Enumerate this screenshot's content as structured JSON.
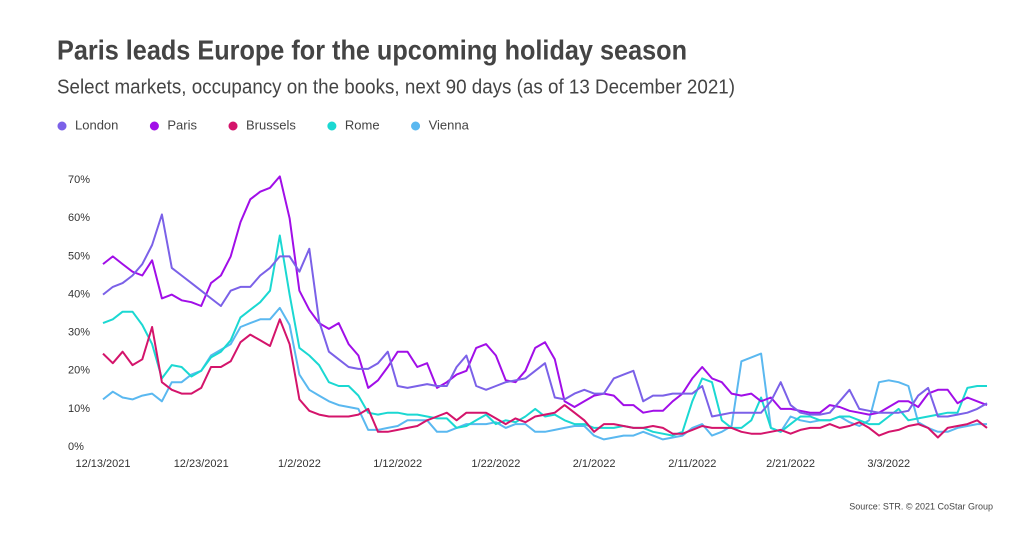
{
  "chart_data": {
    "type": "line",
    "title": "Paris leads Europe for the upcoming holiday season",
    "subtitle": "Select markets, occupancy on the books, next 90 days (as of 13 December 2021)",
    "source": "Source: STR. © 2021 CoStar Group",
    "categories": [
      "12/13/2021",
      null,
      null,
      null,
      null,
      null,
      null,
      null,
      null,
      null,
      "12/23/2021",
      null,
      null,
      null,
      null,
      null,
      null,
      null,
      null,
      null,
      "1/2/2022",
      null,
      null,
      null,
      null,
      null,
      null,
      null,
      null,
      null,
      "1/12/2022",
      null,
      null,
      null,
      null,
      null,
      null,
      null,
      null,
      null,
      "1/22/2022",
      null,
      null,
      null,
      null,
      null,
      null,
      null,
      null,
      null,
      "2/1/2022",
      null,
      null,
      null,
      null,
      null,
      null,
      null,
      null,
      null,
      "2/11/2022",
      null,
      null,
      null,
      null,
      null,
      null,
      null,
      null,
      null,
      "2/21/2022",
      null,
      null,
      null,
      null,
      null,
      null,
      null,
      null,
      null,
      "3/3/2022",
      null,
      null,
      null,
      null,
      null,
      null,
      null,
      null,
      null,
      null
    ],
    "ylim": [
      0,
      72
    ],
    "yticks": [
      {
        "value": 0,
        "label": "0%"
      },
      {
        "value": 10,
        "label": "10%"
      },
      {
        "value": 20,
        "label": "20%"
      },
      {
        "value": 30,
        "label": "30%"
      },
      {
        "value": 40,
        "label": "40%"
      },
      {
        "value": 50,
        "label": "50%"
      },
      {
        "value": 60,
        "label": "60%"
      },
      {
        "value": 70,
        "label": "70%"
      }
    ],
    "grid": false,
    "legend": "top-left",
    "series": [
      {
        "name": "London",
        "color": "#7b61e8",
        "values": [
          40,
          42,
          43,
          45,
          48,
          53,
          61,
          47,
          45,
          43,
          41,
          39,
          37,
          41,
          42,
          42,
          45,
          47,
          50,
          50,
          46,
          52,
          33,
          25,
          23,
          21,
          20.5,
          20.5,
          22,
          25,
          16,
          15.5,
          16,
          16.5,
          16,
          16,
          21,
          24,
          16,
          15,
          16,
          17,
          17.5,
          18,
          20,
          22,
          13,
          12.5,
          14,
          15,
          14,
          14,
          18,
          19,
          20,
          12,
          13.5,
          13.5,
          14,
          14,
          14,
          16,
          8,
          8.5,
          9,
          9,
          9,
          9,
          12,
          17,
          11,
          9,
          8.5,
          8.5,
          9,
          12,
          15,
          10,
          9.5,
          9,
          9,
          9,
          9.5,
          13.5,
          15.5,
          8,
          8,
          8.5,
          9,
          10,
          11.5
        ]
      },
      {
        "name": "Paris",
        "color": "#a10ee8",
        "values": [
          48,
          50,
          48,
          46,
          45,
          49,
          39,
          40,
          38.5,
          38,
          37,
          43,
          45,
          50,
          59,
          65,
          67,
          68,
          71,
          60,
          41,
          36,
          32.5,
          31,
          32.5,
          27,
          24,
          15.5,
          17.5,
          21,
          25,
          25,
          21,
          22,
          15.5,
          17,
          19,
          20,
          26,
          27,
          24,
          17.5,
          17,
          20,
          26,
          27.5,
          23,
          12,
          10.5,
          12,
          13.5,
          14,
          13.5,
          11,
          11,
          9,
          9.5,
          9.5,
          12,
          14,
          18,
          21,
          18,
          17,
          14,
          13.5,
          14,
          12,
          13,
          10,
          10,
          9.5,
          9,
          9,
          11,
          10.5,
          9.5,
          9,
          8.5,
          9,
          10.5,
          12,
          12,
          10.5,
          14,
          15,
          15,
          11.5,
          13,
          12,
          11
        ]
      },
      {
        "name": "Brussels",
        "color": "#d4146b",
        "values": [
          24.5,
          22,
          25,
          21.5,
          23,
          31.5,
          17,
          15,
          14,
          14,
          15.5,
          21,
          21,
          22.5,
          27.5,
          29.5,
          28,
          26.5,
          33.5,
          27,
          12.5,
          9.5,
          8.5,
          8,
          8,
          8,
          8.5,
          10,
          4,
          4,
          4.5,
          5,
          5.5,
          7,
          8,
          9,
          7,
          9,
          9,
          9,
          7.5,
          6,
          7.5,
          6.5,
          8,
          8.5,
          9,
          11,
          9,
          7,
          4,
          6,
          6,
          5.5,
          5,
          5,
          5.5,
          5,
          3.5,
          3.5,
          4.5,
          5.5,
          5,
          5,
          5,
          4,
          3.5,
          3.5,
          4,
          4.5,
          3.5,
          4.5,
          5,
          5,
          6,
          5,
          5.5,
          6.5,
          5,
          3,
          4,
          4.5,
          5.5,
          6,
          5,
          2.5,
          5,
          5.5,
          6,
          7,
          5
        ]
      },
      {
        "name": "Rome",
        "color": "#1bd8d2",
        "values": [
          32.5,
          33.5,
          35.5,
          35.5,
          32,
          27,
          18,
          21.5,
          21,
          18.5,
          20,
          23.5,
          25,
          28,
          34,
          36,
          38,
          41,
          55.5,
          40,
          26,
          24,
          21.5,
          17,
          16,
          16,
          13.5,
          9,
          8.5,
          9,
          9,
          8.5,
          8.5,
          8,
          7.5,
          7.5,
          5,
          5.5,
          7,
          8.5,
          6,
          7,
          6.5,
          8,
          10,
          8,
          8.5,
          7,
          6,
          6,
          5,
          5,
          5,
          5.5,
          5,
          5,
          4,
          3.5,
          3,
          4,
          12,
          18,
          17,
          7,
          5,
          5,
          7,
          13,
          5,
          4,
          6,
          8,
          8,
          7,
          7,
          8,
          8,
          7,
          6,
          6,
          8,
          10,
          7,
          7.5,
          8,
          8.5,
          9,
          9,
          15.5,
          16,
          16
        ]
      },
      {
        "name": "Vienna",
        "color": "#5ab8f0",
        "values": [
          12.5,
          14.5,
          13,
          12.5,
          13.5,
          14,
          12,
          17,
          17,
          19,
          20,
          24,
          25.5,
          27,
          31.5,
          32.5,
          33.5,
          33.5,
          36.5,
          32,
          19,
          15,
          13.5,
          12,
          11,
          10.5,
          10,
          4.5,
          4.5,
          5,
          5.5,
          7,
          7,
          7,
          4,
          4,
          5,
          6,
          6,
          6,
          6.5,
          5,
          6,
          6,
          4,
          4,
          4.5,
          5,
          5.5,
          5.5,
          3,
          2,
          2.5,
          3,
          3,
          4,
          3,
          2,
          2.5,
          3,
          5,
          6,
          3,
          4,
          5.5,
          22.5,
          23.5,
          24.5,
          5,
          4,
          8,
          7,
          6.5,
          7,
          7,
          8,
          6.5,
          5.5,
          7,
          17,
          17.5,
          17,
          16,
          6.5,
          5,
          4,
          4,
          5,
          5.5,
          6,
          6
        ]
      }
    ]
  }
}
